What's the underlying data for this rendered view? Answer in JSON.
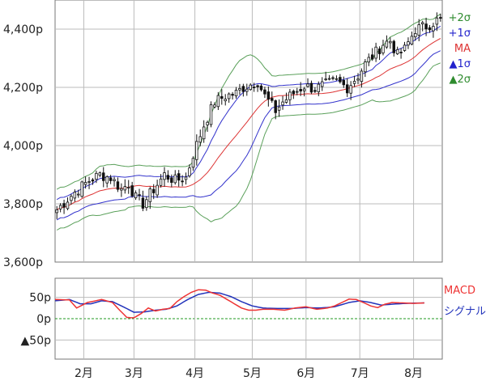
{
  "chart_data": [
    {
      "type": "candlestick",
      "name": "price",
      "ylim": [
        3600,
        4500
      ],
      "yticks": [
        3600,
        3800,
        4000,
        4200,
        4400
      ],
      "ytick_labels": [
        "3,600p",
        "3,800p",
        "4,000p",
        "4,200p",
        "4,400p"
      ],
      "x_months": [
        "2月",
        "3月",
        "4月",
        "5月",
        "6月",
        "7月",
        "8月"
      ],
      "month_positions": [
        8,
        22,
        39,
        55,
        70,
        85,
        100
      ],
      "x_range": [
        0,
        108
      ],
      "grid": true,
      "legend_position": "top-right",
      "legend": [
        {
          "label": "+2σ",
          "color": "#2e8b2e"
        },
        {
          "label": "+1σ",
          "color": "#2222cc"
        },
        {
          "label": "MA",
          "color": "#dd3333"
        },
        {
          "label": "▲1σ",
          "color": "#2222cc"
        },
        {
          "label": "▲2σ",
          "color": "#2e8b2e"
        }
      ],
      "close_anchors": [
        [
          0,
          3780
        ],
        [
          5,
          3840
        ],
        [
          9,
          3880
        ],
        [
          12,
          3900
        ],
        [
          15,
          3890
        ],
        [
          18,
          3850
        ],
        [
          20,
          3870
        ],
        [
          22,
          3820
        ],
        [
          24,
          3800
        ],
        [
          27,
          3850
        ],
        [
          30,
          3900
        ],
        [
          33,
          3880
        ],
        [
          36,
          3890
        ],
        [
          38,
          3970
        ],
        [
          41,
          4070
        ],
        [
          44,
          4150
        ],
        [
          47,
          4170
        ],
        [
          50,
          4180
        ],
        [
          52,
          4200
        ],
        [
          54,
          4210
        ],
        [
          56,
          4220
        ],
        [
          58,
          4170
        ],
        [
          61,
          4120
        ],
        [
          63,
          4150
        ],
        [
          66,
          4180
        ],
        [
          69,
          4205
        ],
        [
          72,
          4195
        ],
        [
          75,
          4210
        ],
        [
          78,
          4220
        ],
        [
          81,
          4200
        ],
        [
          84,
          4240
        ],
        [
          86,
          4280
        ],
        [
          89,
          4320
        ],
        [
          91,
          4350
        ],
        [
          93,
          4360
        ],
        [
          95,
          4310
        ],
        [
          97,
          4330
        ],
        [
          100,
          4400
        ],
        [
          103,
          4410
        ],
        [
          106,
          4430
        ]
      ]
    },
    {
      "type": "line",
      "name": "macd-panel",
      "ylim": [
        -95,
        95
      ],
      "yticks": [
        50,
        0,
        -50
      ],
      "ytick_labels": [
        "50p",
        "0p",
        "▲50p"
      ],
      "zero_line_color": "#229922",
      "series": [
        {
          "name": "MACD",
          "color": "#ee3333"
        },
        {
          "name": "シグナル",
          "color": "#2233bb"
        }
      ],
      "macd_anchors": [
        [
          0,
          45
        ],
        [
          4,
          44
        ],
        [
          6,
          25
        ],
        [
          9,
          38
        ],
        [
          13,
          45
        ],
        [
          16,
          38
        ],
        [
          18,
          20
        ],
        [
          20,
          3
        ],
        [
          22,
          2
        ],
        [
          24,
          12
        ],
        [
          26,
          25
        ],
        [
          28,
          18
        ],
        [
          30,
          22
        ],
        [
          32,
          24
        ],
        [
          34,
          40
        ],
        [
          36,
          52
        ],
        [
          38,
          62
        ],
        [
          40,
          68
        ],
        [
          42,
          67
        ],
        [
          44,
          60
        ],
        [
          46,
          55
        ],
        [
          48,
          45
        ],
        [
          50,
          35
        ],
        [
          52,
          25
        ],
        [
          54,
          20
        ],
        [
          56,
          20
        ],
        [
          58,
          22
        ],
        [
          61,
          22
        ],
        [
          64,
          20
        ],
        [
          67,
          25
        ],
        [
          70,
          28
        ],
        [
          73,
          22
        ],
        [
          76,
          25
        ],
        [
          78,
          30
        ],
        [
          80,
          38
        ],
        [
          82,
          46
        ],
        [
          84,
          45
        ],
        [
          86,
          38
        ],
        [
          88,
          30
        ],
        [
          90,
          26
        ],
        [
          92,
          34
        ],
        [
          94,
          38
        ],
        [
          97,
          37
        ],
        [
          100,
          36
        ],
        [
          103,
          37
        ]
      ],
      "signal_anchors": [
        [
          0,
          42
        ],
        [
          4,
          45
        ],
        [
          7,
          35
        ],
        [
          10,
          35
        ],
        [
          13,
          42
        ],
        [
          16,
          40
        ],
        [
          19,
          28
        ],
        [
          22,
          15
        ],
        [
          25,
          16
        ],
        [
          28,
          20
        ],
        [
          31,
          22
        ],
        [
          34,
          30
        ],
        [
          37,
          45
        ],
        [
          40,
          57
        ],
        [
          43,
          62
        ],
        [
          46,
          60
        ],
        [
          49,
          52
        ],
        [
          52,
          40
        ],
        [
          55,
          30
        ],
        [
          58,
          25
        ],
        [
          62,
          24
        ],
        [
          66,
          24
        ],
        [
          70,
          26
        ],
        [
          74,
          25
        ],
        [
          78,
          28
        ],
        [
          82,
          38
        ],
        [
          85,
          42
        ],
        [
          88,
          38
        ],
        [
          91,
          32
        ],
        [
          94,
          34
        ],
        [
          98,
          36
        ],
        [
          103,
          37
        ]
      ]
    }
  ]
}
